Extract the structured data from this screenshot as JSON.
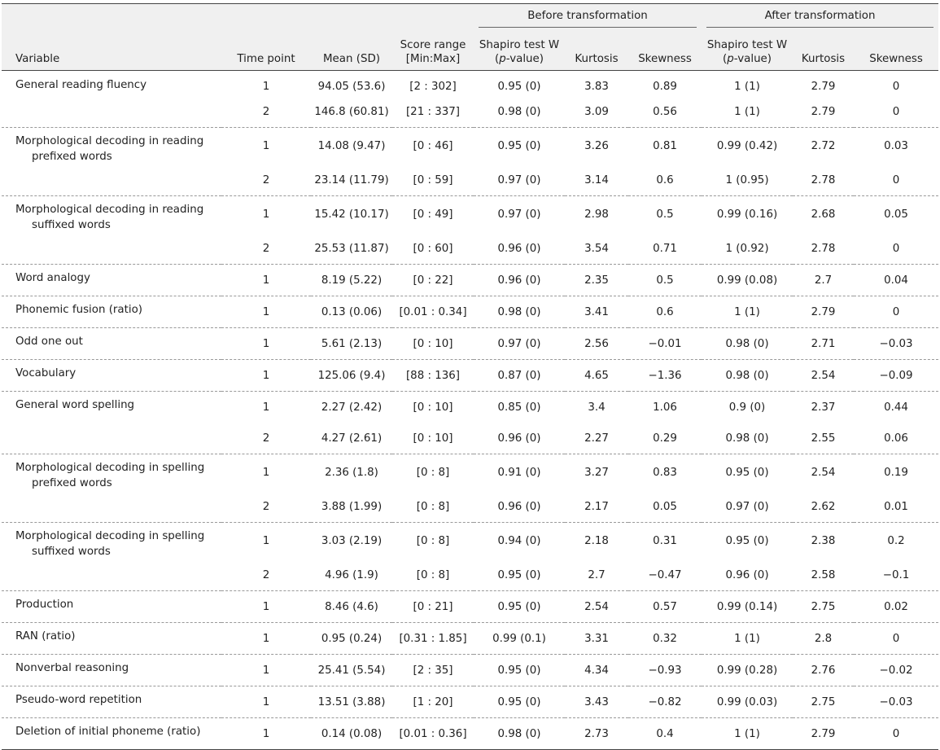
{
  "header": {
    "group_before": "Before transformation",
    "group_after": "After transformation",
    "variable": "Variable",
    "time_point": "Time point",
    "mean_sd": "Mean (SD)",
    "score_range_line1": "Score range",
    "score_range_line2": "[Min:Max]",
    "shapiro_line1": "Shapiro test W",
    "shapiro_p": "p",
    "shapiro_value": "-value)",
    "kurtosis": "Kurtosis",
    "skewness": "Skewness"
  },
  "rows": [
    {
      "variable": "General reading fluency",
      "variable_cont": "",
      "tp": "1",
      "mean": "94.05 (53.6)",
      "range": "[2 : 302]",
      "w1": "0.95 (0)",
      "k1": "3.83",
      "s1": "0.89",
      "w2": "1 (1)",
      "k2": "2.79",
      "s2": "0"
    },
    {
      "variable": "",
      "variable_cont": "",
      "tp": "2",
      "mean": "146.8 (60.81)",
      "range": "[21 : 337]",
      "w1": "0.98 (0)",
      "k1": "3.09",
      "s1": "0.56",
      "w2": "1 (1)",
      "k2": "2.79",
      "s2": "0"
    },
    {
      "variable": "Morphological decoding in reading",
      "variable_cont": "prefixed words",
      "tp": "1",
      "mean": "14.08 (9.47)",
      "range": "[0 : 46]",
      "w1": "0.95 (0)",
      "k1": "3.26",
      "s1": "0.81",
      "w2": "0.99 (0.42)",
      "k2": "2.72",
      "s2": "0.03"
    },
    {
      "variable": "",
      "variable_cont": "",
      "tp": "2",
      "mean": "23.14 (11.79)",
      "range": "[0 : 59]",
      "w1": "0.97 (0)",
      "k1": "3.14",
      "s1": "0.6",
      "w2": "1 (0.95)",
      "k2": "2.78",
      "s2": "0"
    },
    {
      "variable": "Morphological decoding in reading",
      "variable_cont": "suffixed words",
      "tp": "1",
      "mean": "15.42 (10.17)",
      "range": "[0 : 49]",
      "w1": "0.97 (0)",
      "k1": "2.98",
      "s1": "0.5",
      "w2": "0.99 (0.16)",
      "k2": "2.68",
      "s2": "0.05"
    },
    {
      "variable": "",
      "variable_cont": "",
      "tp": "2",
      "mean": "25.53 (11.87)",
      "range": "[0 : 60]",
      "w1": "0.96 (0)",
      "k1": "3.54",
      "s1": "0.71",
      "w2": "1 (0.92)",
      "k2": "2.78",
      "s2": "0"
    },
    {
      "variable": "Word analogy",
      "variable_cont": "",
      "tp": "1",
      "mean": "8.19 (5.22)",
      "range": "[0 : 22]",
      "w1": "0.96 (0)",
      "k1": "2.35",
      "s1": "0.5",
      "w2": "0.99 (0.08)",
      "k2": "2.7",
      "s2": "0.04"
    },
    {
      "variable": "Phonemic fusion (ratio)",
      "variable_cont": "",
      "tp": "1",
      "mean": "0.13 (0.06)",
      "range": "[0.01 : 0.34]",
      "w1": "0.98 (0)",
      "k1": "3.41",
      "s1": "0.6",
      "w2": "1 (1)",
      "k2": "2.79",
      "s2": "0"
    },
    {
      "variable": "Odd one out",
      "variable_cont": "",
      "tp": "1",
      "mean": "5.61 (2.13)",
      "range": "[0 : 10]",
      "w1": "0.97 (0)",
      "k1": "2.56",
      "s1": "−0.01",
      "w2": "0.98 (0)",
      "k2": "2.71",
      "s2": "−0.03"
    },
    {
      "variable": "Vocabulary",
      "variable_cont": "",
      "tp": "1",
      "mean": "125.06 (9.4)",
      "range": "[88 : 136]",
      "w1": "0.87 (0)",
      "k1": "4.65",
      "s1": "−1.36",
      "w2": "0.98 (0)",
      "k2": "2.54",
      "s2": "−0.09"
    },
    {
      "variable": "General word spelling",
      "variable_cont": "",
      "tp": "1",
      "mean": "2.27 (2.42)",
      "range": "[0 : 10]",
      "w1": "0.85 (0)",
      "k1": "3.4",
      "s1": "1.06",
      "w2": "0.9 (0)",
      "k2": "2.37",
      "s2": "0.44"
    },
    {
      "variable": "",
      "variable_cont": "",
      "tp": "2",
      "mean": "4.27 (2.61)",
      "range": "[0 : 10]",
      "w1": "0.96 (0)",
      "k1": "2.27",
      "s1": "0.29",
      "w2": "0.98 (0)",
      "k2": "2.55",
      "s2": "0.06"
    },
    {
      "variable": "Morphological decoding in spelling",
      "variable_cont": "prefixed words",
      "tp": "1",
      "mean": "2.36 (1.8)",
      "range": "[0 : 8]",
      "w1": "0.91 (0)",
      "k1": "3.27",
      "s1": "0.83",
      "w2": "0.95 (0)",
      "k2": "2.54",
      "s2": "0.19"
    },
    {
      "variable": "",
      "variable_cont": "",
      "tp": "2",
      "mean": "3.88 (1.99)",
      "range": "[0 : 8]",
      "w1": "0.96 (0)",
      "k1": "2.17",
      "s1": "0.05",
      "w2": "0.97 (0)",
      "k2": "2.62",
      "s2": "0.01"
    },
    {
      "variable": "Morphological decoding in spelling",
      "variable_cont": "suffixed words",
      "tp": "1",
      "mean": "3.03 (2.19)",
      "range": "[0 : 8]",
      "w1": "0.94 (0)",
      "k1": "2.18",
      "s1": "0.31",
      "w2": "0.95 (0)",
      "k2": "2.38",
      "s2": "0.2"
    },
    {
      "variable": "",
      "variable_cont": "",
      "tp": "2",
      "mean": "4.96 (1.9)",
      "range": "[0 : 8]",
      "w1": "0.95 (0)",
      "k1": "2.7",
      "s1": "−0.47",
      "w2": "0.96 (0)",
      "k2": "2.58",
      "s2": "−0.1"
    },
    {
      "variable": "Production",
      "variable_cont": "",
      "tp": "1",
      "mean": "8.46 (4.6)",
      "range": "[0 : 21]",
      "w1": "0.95 (0)",
      "k1": "2.54",
      "s1": "0.57",
      "w2": "0.99 (0.14)",
      "k2": "2.75",
      "s2": "0.02"
    },
    {
      "variable": "RAN (ratio)",
      "variable_cont": "",
      "tp": "1",
      "mean": "0.95 (0.24)",
      "range": "[0.31 : 1.85]",
      "w1": "0.99 (0.1)",
      "k1": "3.31",
      "s1": "0.32",
      "w2": "1 (1)",
      "k2": "2.8",
      "s2": "0"
    },
    {
      "variable": "Nonverbal reasoning",
      "variable_cont": "",
      "tp": "1",
      "mean": "25.41 (5.54)",
      "range": "[2 : 35]",
      "w1": "0.95 (0)",
      "k1": "4.34",
      "s1": "−0.93",
      "w2": "0.99 (0.28)",
      "k2": "2.76",
      "s2": "−0.02"
    },
    {
      "variable": "Pseudo-word repetition",
      "variable_cont": "",
      "tp": "1",
      "mean": "13.51 (3.88)",
      "range": "[1 : 20]",
      "w1": "0.95 (0)",
      "k1": "3.43",
      "s1": "−0.82",
      "w2": "0.99 (0.03)",
      "k2": "2.75",
      "s2": "−0.03"
    },
    {
      "variable": "Deletion of initial phoneme (ratio)",
      "variable_cont": "",
      "tp": "1",
      "mean": "0.14 (0.08)",
      "range": "[0.01 : 0.36]",
      "w1": "0.98 (0)",
      "k1": "2.73",
      "s1": "0.4",
      "w2": "1 (1)",
      "k2": "2.79",
      "s2": "0"
    }
  ]
}
